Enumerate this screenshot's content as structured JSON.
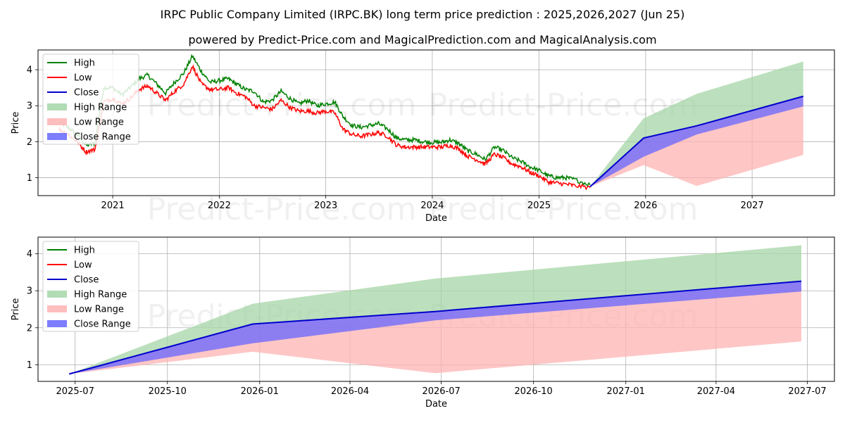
{
  "title": "IRPC Public Company Limited (IRPC.BK) long term price prediction : 2025,2026,2027 (Jun 25)",
  "subtitle": "powered by Predict-Price.com and MagicalPrediction.com and MagicalAnalysis.com",
  "watermark": "Predict-Price.com",
  "colors": {
    "high": "#008000",
    "low": "#ff0000",
    "close": "#0000cc",
    "high_range": "#a5d6a7",
    "low_range": "#ffb3b3",
    "close_range": "#6666ff",
    "grid": "#b0b0b0"
  },
  "chart_data": [
    {
      "type": "line",
      "xlabel": "Date",
      "ylabel": "Price",
      "xlim": [
        "2020-04-20",
        "2027-10-10"
      ],
      "ylim": [
        0.5,
        4.55
      ],
      "yticks": [
        1,
        2,
        3,
        4
      ],
      "xticks": [
        "2021-01-01",
        "2022-01-01",
        "2023-01-01",
        "2024-01-01",
        "2025-01-01",
        "2026-01-01",
        "2027-01-01"
      ],
      "xtick_labels": [
        "2021",
        "2022",
        "2023",
        "2024",
        "2025",
        "2026",
        "2027"
      ],
      "grid": true,
      "legend_position": "top-left",
      "legend": [
        "High",
        "Low",
        "Close",
        "High Range",
        "Low Range",
        "Close Range"
      ],
      "history": {
        "dates": [
          "2020-07-01",
          "2020-08-01",
          "2020-09-01",
          "2020-10-01",
          "2020-11-01",
          "2020-12-01",
          "2021-01-01",
          "2021-02-01",
          "2021-03-01",
          "2021-04-01",
          "2021-05-01",
          "2021-06-01",
          "2021-07-01",
          "2021-08-01",
          "2021-09-01",
          "2021-10-01",
          "2021-11-01",
          "2021-12-01",
          "2022-01-01",
          "2022-02-01",
          "2022-03-01",
          "2022-04-01",
          "2022-05-01",
          "2022-06-01",
          "2022-07-01",
          "2022-08-01",
          "2022-09-01",
          "2022-10-01",
          "2022-11-01",
          "2022-12-01",
          "2023-01-01",
          "2023-02-01",
          "2023-03-01",
          "2023-04-01",
          "2023-05-01",
          "2023-06-01",
          "2023-07-01",
          "2023-08-01",
          "2023-09-01",
          "2023-10-01",
          "2023-11-01",
          "2023-12-01",
          "2024-01-01",
          "2024-02-01",
          "2024-03-01",
          "2024-04-01",
          "2024-05-01",
          "2024-06-01",
          "2024-07-01",
          "2024-08-01",
          "2024-09-01",
          "2024-10-01",
          "2024-11-01",
          "2024-12-01",
          "2025-01-01",
          "2025-02-01",
          "2025-03-01",
          "2025-04-01",
          "2025-05-01",
          "2025-06-25"
        ],
        "high": [
          2.55,
          2.4,
          2.2,
          1.9,
          1.95,
          3.5,
          3.5,
          3.3,
          3.5,
          3.75,
          3.85,
          3.6,
          3.35,
          3.65,
          3.9,
          4.38,
          3.95,
          3.65,
          3.7,
          3.75,
          3.6,
          3.45,
          3.4,
          3.1,
          3.15,
          3.4,
          3.2,
          3.05,
          3.15,
          3.0,
          3.05,
          3.1,
          2.7,
          2.45,
          2.4,
          2.45,
          2.5,
          2.35,
          2.1,
          2.05,
          2.05,
          2.0,
          1.98,
          1.98,
          2.05,
          1.95,
          1.75,
          1.65,
          1.5,
          1.85,
          1.75,
          1.55,
          1.45,
          1.3,
          1.2,
          1.05,
          1.0,
          1.0,
          0.95,
          0.8
        ],
        "low": [
          2.35,
          2.2,
          2.0,
          1.72,
          1.78,
          3.1,
          3.2,
          3.05,
          3.2,
          3.45,
          3.55,
          3.35,
          3.15,
          3.4,
          3.6,
          4.1,
          3.6,
          3.45,
          3.45,
          3.5,
          3.35,
          3.25,
          3.0,
          2.95,
          2.9,
          3.15,
          2.95,
          2.85,
          2.85,
          2.8,
          2.85,
          2.8,
          2.35,
          2.2,
          2.15,
          2.2,
          2.25,
          2.15,
          1.9,
          1.85,
          1.85,
          1.85,
          1.85,
          1.85,
          1.9,
          1.8,
          1.6,
          1.5,
          1.38,
          1.65,
          1.55,
          1.38,
          1.3,
          1.15,
          1.05,
          0.88,
          0.85,
          0.82,
          0.78,
          0.72
        ],
        "close": [
          2.45,
          2.3,
          2.1,
          1.8,
          1.85,
          3.3,
          3.35,
          3.15,
          3.35,
          3.6,
          3.7,
          3.45,
          3.25,
          3.5,
          3.75,
          4.25,
          3.75,
          3.55,
          3.55,
          3.6,
          3.45,
          3.35,
          3.2,
          3.0,
          3.0,
          3.25,
          3.05,
          2.95,
          3.0,
          2.9,
          2.95,
          2.95,
          2.5,
          2.3,
          2.25,
          2.3,
          2.35,
          2.25,
          2.0,
          1.95,
          1.95,
          1.92,
          1.9,
          1.9,
          1.98,
          1.88,
          1.65,
          1.55,
          1.42,
          1.75,
          1.62,
          1.45,
          1.38,
          1.22,
          1.12,
          0.95,
          0.92,
          0.9,
          0.85,
          0.75
        ]
      },
      "forecast": {
        "dates": [
          "2025-06-25",
          "2025-12-25",
          "2026-06-25",
          "2027-06-25"
        ],
        "close": [
          0.75,
          2.1,
          2.44,
          3.26
        ],
        "high_range": [
          [
            0.75,
            0.75
          ],
          [
            2.1,
            2.65
          ],
          [
            2.44,
            3.33
          ],
          [
            3.26,
            4.23
          ]
        ],
        "low_range": [
          [
            0.75,
            0.75
          ],
          [
            1.35,
            2.1
          ],
          [
            0.77,
            2.44
          ],
          [
            1.63,
            3.26
          ]
        ],
        "close_range": [
          [
            0.75,
            0.75
          ],
          [
            1.58,
            2.1
          ],
          [
            2.2,
            2.44
          ],
          [
            2.98,
            3.26
          ]
        ]
      }
    },
    {
      "type": "line",
      "xlabel": "Date",
      "ylabel": "Price",
      "xlim": [
        "2025-05-25",
        "2027-07-28"
      ],
      "ylim": [
        0.55,
        4.45
      ],
      "yticks": [
        1,
        2,
        3,
        4
      ],
      "xticks": [
        "2025-07-01",
        "2025-10-01",
        "2026-01-01",
        "2026-04-01",
        "2026-07-01",
        "2026-10-01",
        "2027-01-01",
        "2027-04-01",
        "2027-07-01"
      ],
      "xtick_labels": [
        "2025-07",
        "2025-10",
        "2026-01",
        "2026-04",
        "2026-07",
        "2026-10",
        "2027-01",
        "2027-04",
        "2027-07"
      ],
      "grid": true,
      "legend_position": "top-left",
      "legend": [
        "High",
        "Low",
        "Close",
        "High Range",
        "Low Range",
        "Close Range"
      ],
      "forecast": {
        "dates": [
          "2025-06-25",
          "2025-12-25",
          "2026-06-25",
          "2027-06-25"
        ],
        "close": [
          0.75,
          2.1,
          2.44,
          3.26
        ],
        "high_range": [
          [
            0.75,
            0.75
          ],
          [
            2.1,
            2.65
          ],
          [
            2.44,
            3.33
          ],
          [
            3.26,
            4.23
          ]
        ],
        "low_range": [
          [
            0.75,
            0.75
          ],
          [
            1.35,
            2.1
          ],
          [
            0.77,
            2.44
          ],
          [
            1.63,
            3.26
          ]
        ],
        "close_range": [
          [
            0.75,
            0.75
          ],
          [
            1.58,
            2.1
          ],
          [
            2.2,
            2.44
          ],
          [
            2.98,
            3.26
          ]
        ]
      }
    }
  ]
}
